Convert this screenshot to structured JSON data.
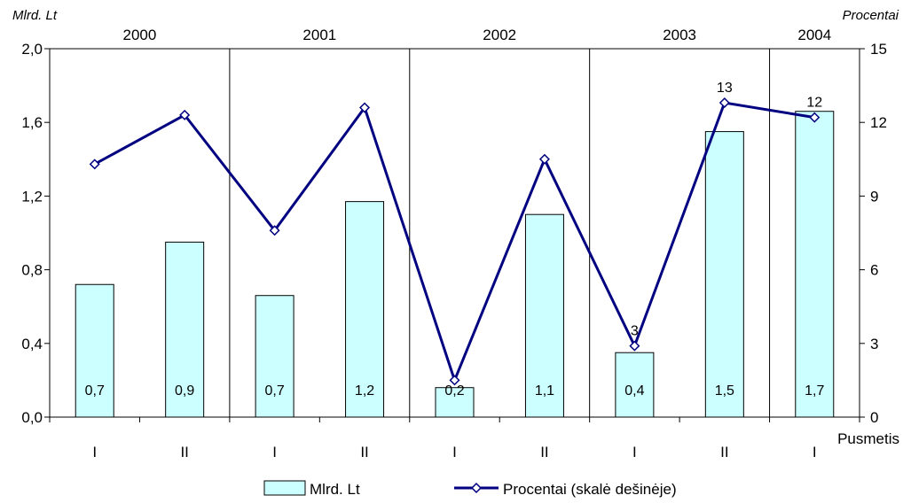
{
  "chart_data": {
    "type": "bar+line",
    "left_axis_title": "Mlrd. Lt",
    "right_axis_title": "Procentai",
    "xlabel": "Pusmetis",
    "left_ticks": [
      "0,0",
      "0,4",
      "0,8",
      "1,2",
      "1,6",
      "2,0"
    ],
    "right_ticks": [
      "0",
      "3",
      "6",
      "9",
      "12",
      "15"
    ],
    "ylim_left": [
      0,
      2.0
    ],
    "ylim_right": [
      0,
      15
    ],
    "years": [
      {
        "label": "2000",
        "start": 0,
        "end": 2
      },
      {
        "label": "2001",
        "start": 2,
        "end": 4
      },
      {
        "label": "2002",
        "start": 4,
        "end": 6
      },
      {
        "label": "2003",
        "start": 6,
        "end": 8
      },
      {
        "label": "2004",
        "start": 8,
        "end": 9
      }
    ],
    "categories": [
      "I",
      "II",
      "I",
      "II",
      "I",
      "II",
      "I",
      "II",
      "I"
    ],
    "series": [
      {
        "name": "Mlrd. Lt",
        "type": "bar",
        "axis": "left",
        "values": [
          0.72,
          0.95,
          0.66,
          1.17,
          0.16,
          1.1,
          0.35,
          1.55,
          1.66
        ],
        "labels": [
          "0,7",
          "0,9",
          "0,7",
          "1,2",
          "0,2",
          "1,1",
          "0,4",
          "1,5",
          "1,7"
        ],
        "color": "#ccffff"
      },
      {
        "name": "Procentai (skalė dešinėje)",
        "type": "line",
        "axis": "right",
        "values": [
          10.3,
          12.3,
          7.6,
          12.6,
          1.5,
          10.5,
          2.9,
          12.8,
          12.2
        ],
        "labels": [
          "",
          "",
          "",
          "",
          "",
          "",
          "3",
          "13",
          "12"
        ],
        "color": "#000080"
      }
    ],
    "grid": false,
    "legend": "bottom"
  }
}
